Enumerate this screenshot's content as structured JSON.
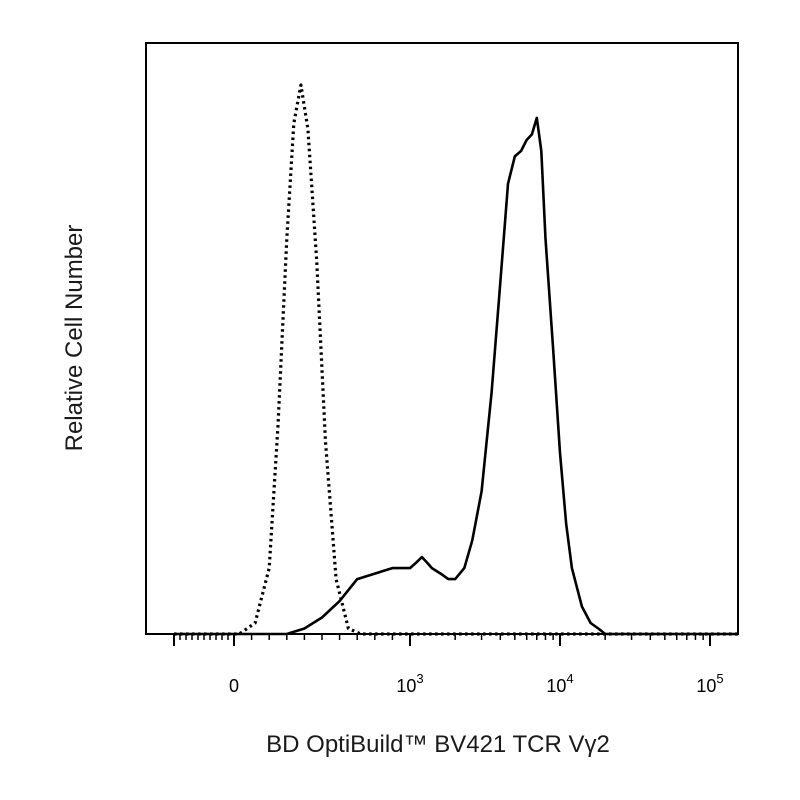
{
  "chart_data": {
    "type": "line",
    "title": "",
    "xlabel": "BD OptiBuild™ BV421 TCR Vγ2",
    "ylabel": "Relative Cell Number",
    "x_scale": "biexponential",
    "xlim": [
      -1000,
      250000
    ],
    "ylim": [
      0,
      1.0
    ],
    "grid": false,
    "legend": "none",
    "x_ticks": [
      {
        "value": 0,
        "base": "0",
        "exp": ""
      },
      {
        "value": 1000,
        "base": "10",
        "exp": "3"
      },
      {
        "value": 10000,
        "base": "10",
        "exp": "4"
      },
      {
        "value": 100000,
        "base": "10",
        "exp": "5"
      }
    ],
    "series": [
      {
        "style": "dotted",
        "color": "#000000",
        "x": [
          -1000,
          30,
          120,
          200,
          250,
          300,
          340,
          380,
          420,
          470,
          520,
          580,
          650,
          720,
          800,
          250000
        ],
        "y": [
          0,
          0,
          0.02,
          0.12,
          0.38,
          0.72,
          0.93,
          1.0,
          0.92,
          0.68,
          0.35,
          0.1,
          0.01,
          0,
          0,
          0
        ]
      },
      {
        "style": "solid",
        "color": "#000000",
        "x": [
          -1000,
          300,
          400,
          500,
          600,
          700,
          800,
          900,
          1000,
          1100,
          1200,
          1300,
          1400,
          1600,
          1800,
          2000,
          2300,
          2600,
          3000,
          3500,
          4000,
          4500,
          5000,
          5500,
          6000,
          6500,
          7000,
          7500,
          8000,
          9000,
          10000,
          11000,
          12000,
          14000,
          16000,
          18000,
          20000,
          250000
        ],
        "y": [
          0,
          0,
          0.01,
          0.03,
          0.06,
          0.1,
          0.11,
          0.12,
          0.12,
          0.13,
          0.14,
          0.13,
          0.12,
          0.11,
          0.1,
          0.1,
          0.12,
          0.17,
          0.26,
          0.44,
          0.64,
          0.82,
          0.87,
          0.88,
          0.9,
          0.91,
          0.94,
          0.88,
          0.72,
          0.52,
          0.33,
          0.2,
          0.12,
          0.05,
          0.02,
          0.01,
          0,
          0
        ]
      }
    ]
  }
}
